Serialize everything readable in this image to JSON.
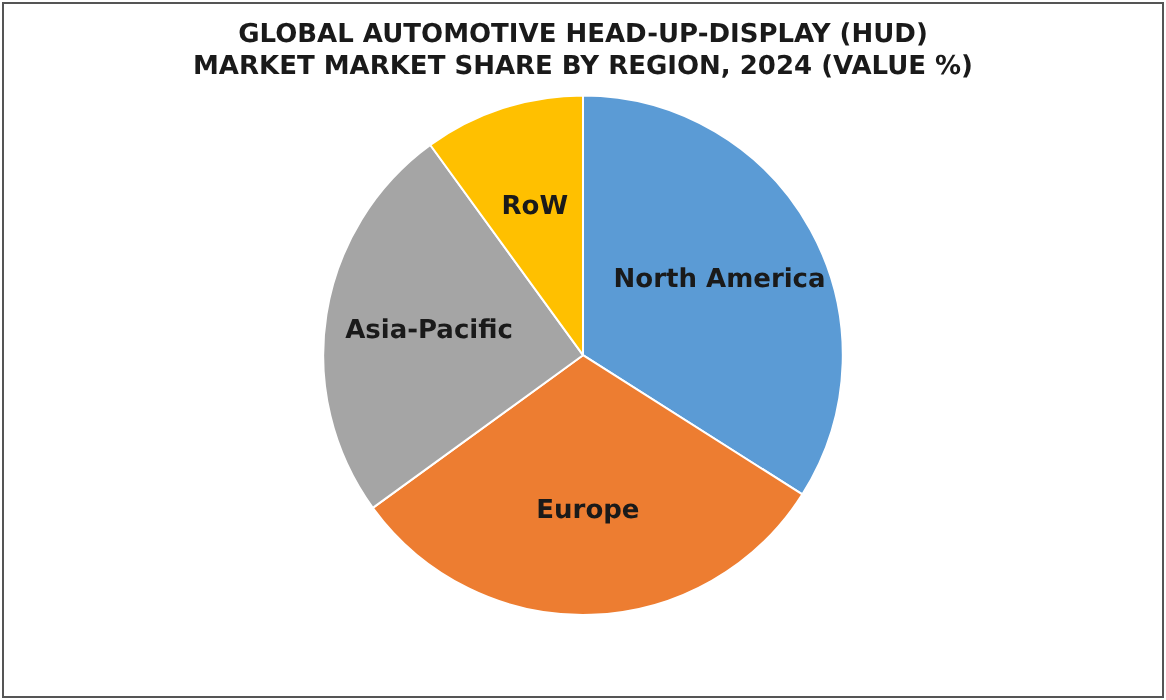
{
  "chart_data": {
    "type": "pie",
    "title": "GLOBAL AUTOMOTIVE HEAD-UP-DISPLAY (HUD)\nMARKET MARKET SHARE BY REGION, 2024 (VALUE %)",
    "categories": [
      "North America",
      "Europe",
      "Asia-Pacific",
      "RoW"
    ],
    "values": [
      34,
      31,
      25,
      10
    ],
    "colors": [
      "#5b9bd5",
      "#ed7d31",
      "#a5a5a5",
      "#ffc000"
    ],
    "legend": false
  }
}
